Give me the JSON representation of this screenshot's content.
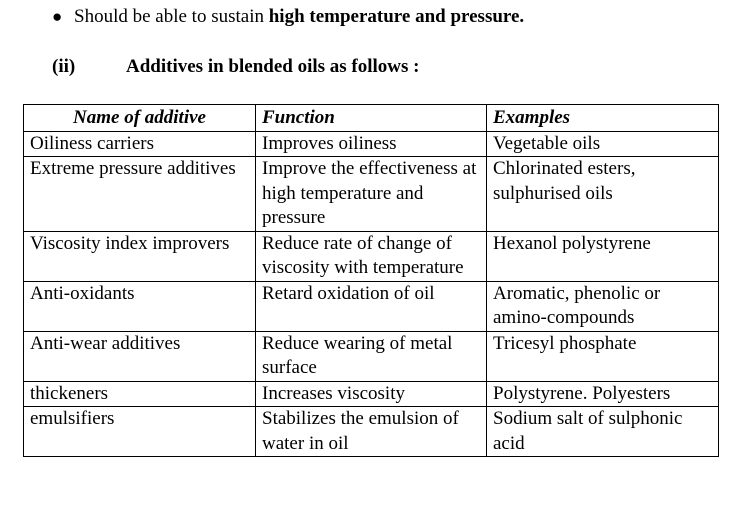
{
  "bullet": {
    "symbol": "●",
    "text_before": "Should be able to sustain ",
    "text_bold": "high temperature and pressure."
  },
  "heading": {
    "number": "(ii)",
    "title": "Additives in blended oils as follows :"
  },
  "table": {
    "headers": [
      "Name of additive",
      "Function",
      "Examples"
    ],
    "rows": [
      [
        "Oiliness carriers",
        "Improves oiliness",
        "Vegetable oils"
      ],
      [
        "Extreme pressure additives",
        "Improve the effectiveness at high temperature and pressure",
        "Chlorinated esters, sulphurised oils"
      ],
      [
        "Viscosity index improvers",
        "Reduce rate of change of viscosity with temperature",
        "Hexanol polystyrene"
      ],
      [
        "Anti-oxidants",
        "Retard oxidation of oil",
        "Aromatic, phenolic or amino-compounds"
      ],
      [
        "Anti-wear additives",
        "Reduce wearing of metal surface",
        "Tricesyl phosphate"
      ],
      [
        "thickeners",
        "Increases viscosity",
        "Polystyrene. Polyesters"
      ],
      [
        "emulsifiers",
        "Stabilizes the emulsion of water in oil",
        "Sodium salt of sulphonic acid"
      ]
    ]
  }
}
